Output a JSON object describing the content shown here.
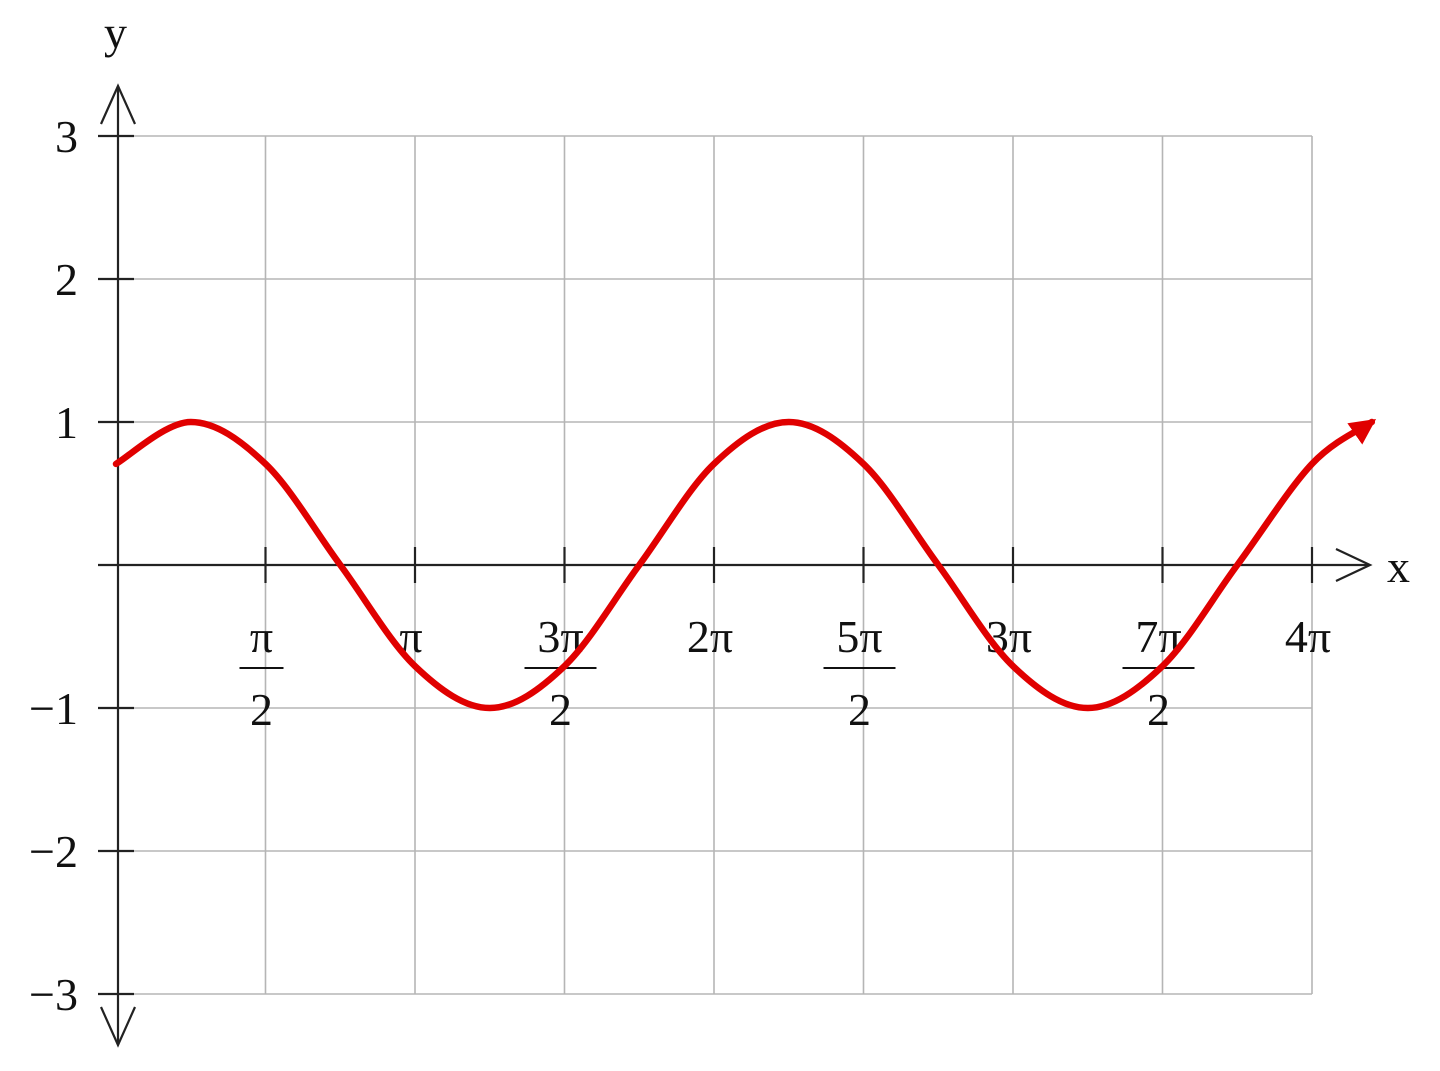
{
  "chart_data": {
    "type": "line",
    "title": "",
    "xlabel": "x",
    "ylabel": "y",
    "xlim_pi": [
      0,
      4
    ],
    "ylim": [
      -3,
      3
    ],
    "grid": true,
    "x_ticks": [
      {
        "value_pi": 0.5,
        "label": "",
        "numerator": "π",
        "denominator": "2"
      },
      {
        "value_pi": 1.0,
        "label": "π"
      },
      {
        "value_pi": 1.5,
        "label": "",
        "numerator": "3π",
        "denominator": "2"
      },
      {
        "value_pi": 2.0,
        "label": "2π"
      },
      {
        "value_pi": 2.5,
        "label": "",
        "numerator": "5π",
        "denominator": "2"
      },
      {
        "value_pi": 3.0,
        "label": "3π"
      },
      {
        "value_pi": 3.5,
        "label": "",
        "numerator": "7π",
        "denominator": "2"
      },
      {
        "value_pi": 4.0,
        "label": "4π"
      }
    ],
    "y_ticks": [
      {
        "value": 3,
        "label": "3"
      },
      {
        "value": 2,
        "label": "2"
      },
      {
        "value": 1,
        "label": "1"
      },
      {
        "value": -1,
        "label": "−1"
      },
      {
        "value": -2,
        "label": "−2"
      },
      {
        "value": -3,
        "label": "−3"
      }
    ],
    "series": [
      {
        "color": "#e00000",
        "arrow_end": true,
        "x_pi": [
          0,
          0.25,
          0.5,
          0.75,
          1.0,
          1.25,
          1.5,
          1.75,
          2.0,
          2.25,
          2.5,
          2.75,
          3.0,
          3.25,
          3.5,
          3.75,
          4.0,
          4.2
        ],
        "y": [
          0.707,
          1.0,
          0.707,
          0.0,
          -0.707,
          -1.0,
          -0.707,
          0.0,
          0.707,
          1.0,
          0.707,
          0.0,
          -0.707,
          -1.0,
          -0.707,
          0.0,
          0.707,
          1.0
        ]
      }
    ]
  }
}
